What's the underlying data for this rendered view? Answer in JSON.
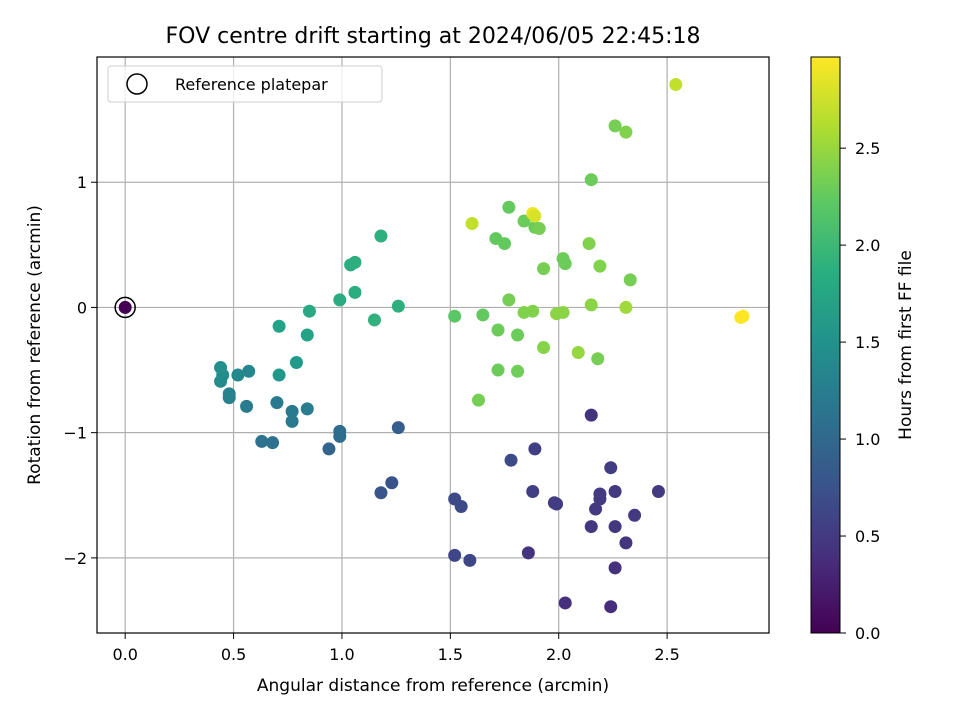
{
  "chart_data": {
    "type": "scatter",
    "title": "FOV centre drift starting at 2024/06/05 22:45:18",
    "xlabel": "Angular distance from reference (arcmin)",
    "ylabel": "Rotation from reference (arcmin)",
    "xlim": [
      -0.13,
      2.97
    ],
    "ylim": [
      -2.6,
      2.0
    ],
    "xticks": [
      0.0,
      0.5,
      1.0,
      1.5,
      2.0,
      2.5
    ],
    "xtick_labels": [
      "0.0",
      "0.5",
      "1.0",
      "1.5",
      "2.0",
      "2.5"
    ],
    "yticks": [
      -2,
      -1,
      0,
      1
    ],
    "ytick_labels": [
      "−2",
      "−1",
      "0",
      "1"
    ],
    "grid": true,
    "colorbar": {
      "label": "Hours from first FF file",
      "colormap": "viridis",
      "range": [
        0.0,
        2.97
      ],
      "ticks": [
        0.0,
        0.5,
        1.0,
        1.5,
        2.0,
        2.5
      ],
      "tick_labels": [
        "0.0",
        "0.5",
        "1.0",
        "1.5",
        "2.0",
        "2.5"
      ]
    },
    "legend": {
      "position": "upper-left",
      "entries": [
        "Reference platepar"
      ]
    },
    "reference_point": {
      "x": 0.0,
      "y": 0.0
    },
    "points": [
      {
        "x": 0.0,
        "y": 0.0,
        "c": 0.0
      },
      {
        "x": 2.24,
        "y": -2.39,
        "c": 0.38
      },
      {
        "x": 2.03,
        "y": -2.36,
        "c": 0.4
      },
      {
        "x": 2.26,
        "y": -2.08,
        "c": 0.42
      },
      {
        "x": 1.86,
        "y": -1.96,
        "c": 0.45
      },
      {
        "x": 1.59,
        "y": -2.02,
        "c": 0.62
      },
      {
        "x": 1.52,
        "y": -1.98,
        "c": 0.62
      },
      {
        "x": 2.31,
        "y": -1.88,
        "c": 0.46
      },
      {
        "x": 2.26,
        "y": -1.75,
        "c": 0.48
      },
      {
        "x": 2.15,
        "y": -1.75,
        "c": 0.48
      },
      {
        "x": 2.35,
        "y": -1.66,
        "c": 0.5
      },
      {
        "x": 2.17,
        "y": -1.61,
        "c": 0.5
      },
      {
        "x": 1.99,
        "y": -1.57,
        "c": 0.52
      },
      {
        "x": 1.98,
        "y": -1.56,
        "c": 0.52
      },
      {
        "x": 2.19,
        "y": -1.53,
        "c": 0.5
      },
      {
        "x": 2.19,
        "y": -1.49,
        "c": 0.5
      },
      {
        "x": 2.26,
        "y": -1.47,
        "c": 0.5
      },
      {
        "x": 2.46,
        "y": -1.47,
        "c": 0.5
      },
      {
        "x": 1.88,
        "y": -1.47,
        "c": 0.55
      },
      {
        "x": 1.55,
        "y": -1.59,
        "c": 0.65
      },
      {
        "x": 1.52,
        "y": -1.53,
        "c": 0.65
      },
      {
        "x": 2.24,
        "y": -1.28,
        "c": 0.52
      },
      {
        "x": 1.89,
        "y": -1.13,
        "c": 0.55
      },
      {
        "x": 1.78,
        "y": -1.22,
        "c": 0.65
      },
      {
        "x": 2.15,
        "y": -0.86,
        "c": 0.45
      },
      {
        "x": 1.23,
        "y": -1.4,
        "c": 0.75
      },
      {
        "x": 1.18,
        "y": -1.48,
        "c": 0.78
      },
      {
        "x": 1.26,
        "y": -0.96,
        "c": 0.88
      },
      {
        "x": 0.94,
        "y": -1.13,
        "c": 0.95
      },
      {
        "x": 0.99,
        "y": -1.03,
        "c": 1.05
      },
      {
        "x": 0.99,
        "y": -0.99,
        "c": 1.05
      },
      {
        "x": 0.68,
        "y": -1.08,
        "c": 1.1
      },
      {
        "x": 0.63,
        "y": -1.07,
        "c": 1.12
      },
      {
        "x": 0.77,
        "y": -0.91,
        "c": 1.2
      },
      {
        "x": 0.77,
        "y": -0.83,
        "c": 1.22
      },
      {
        "x": 0.84,
        "y": -0.81,
        "c": 1.24
      },
      {
        "x": 0.7,
        "y": -0.76,
        "c": 1.22
      },
      {
        "x": 0.56,
        "y": -0.79,
        "c": 1.25
      },
      {
        "x": 0.48,
        "y": -0.72,
        "c": 1.3
      },
      {
        "x": 0.48,
        "y": -0.69,
        "c": 1.33
      },
      {
        "x": 0.44,
        "y": -0.59,
        "c": 1.42
      },
      {
        "x": 0.52,
        "y": -0.54,
        "c": 1.4
      },
      {
        "x": 0.57,
        "y": -0.51,
        "c": 1.38
      },
      {
        "x": 0.45,
        "y": -0.54,
        "c": 1.45
      },
      {
        "x": 0.44,
        "y": -0.48,
        "c": 1.48
      },
      {
        "x": 0.71,
        "y": -0.54,
        "c": 1.58
      },
      {
        "x": 0.79,
        "y": -0.44,
        "c": 1.62
      },
      {
        "x": 0.71,
        "y": -0.15,
        "c": 1.7
      },
      {
        "x": 0.84,
        "y": -0.22,
        "c": 1.72
      },
      {
        "x": 0.85,
        "y": -0.03,
        "c": 1.78
      },
      {
        "x": 0.99,
        "y": 0.06,
        "c": 1.82
      },
      {
        "x": 1.06,
        "y": 0.12,
        "c": 1.85
      },
      {
        "x": 1.26,
        "y": 0.01,
        "c": 1.88
      },
      {
        "x": 1.15,
        "y": -0.1,
        "c": 1.9
      },
      {
        "x": 1.04,
        "y": 0.34,
        "c": 1.85
      },
      {
        "x": 1.06,
        "y": 0.36,
        "c": 1.86
      },
      {
        "x": 1.18,
        "y": 0.57,
        "c": 1.88
      },
      {
        "x": 1.52,
        "y": -0.07,
        "c": 2.2
      },
      {
        "x": 1.65,
        "y": -0.06,
        "c": 2.25
      },
      {
        "x": 1.72,
        "y": -0.18,
        "c": 2.3
      },
      {
        "x": 1.81,
        "y": -0.22,
        "c": 2.3
      },
      {
        "x": 1.72,
        "y": -0.5,
        "c": 2.3
      },
      {
        "x": 1.81,
        "y": -0.51,
        "c": 2.32
      },
      {
        "x": 1.63,
        "y": -0.74,
        "c": 2.35
      },
      {
        "x": 1.77,
        "y": 0.06,
        "c": 2.35
      },
      {
        "x": 1.84,
        "y": -0.04,
        "c": 2.4
      },
      {
        "x": 1.88,
        "y": -0.03,
        "c": 2.4
      },
      {
        "x": 1.93,
        "y": -0.32,
        "c": 2.42
      },
      {
        "x": 1.99,
        "y": -0.05,
        "c": 2.45
      },
      {
        "x": 2.02,
        "y": -0.04,
        "c": 2.45
      },
      {
        "x": 2.09,
        "y": -0.36,
        "c": 2.5
      },
      {
        "x": 2.18,
        "y": -0.41,
        "c": 2.35
      },
      {
        "x": 2.15,
        "y": 0.02,
        "c": 2.45
      },
      {
        "x": 2.31,
        "y": 0.0,
        "c": 2.55
      },
      {
        "x": 2.33,
        "y": 0.22,
        "c": 2.35
      },
      {
        "x": 2.19,
        "y": 0.33,
        "c": 2.4
      },
      {
        "x": 2.02,
        "y": 0.39,
        "c": 2.3
      },
      {
        "x": 2.03,
        "y": 0.35,
        "c": 2.3
      },
      {
        "x": 1.93,
        "y": 0.31,
        "c": 2.35
      },
      {
        "x": 2.14,
        "y": 0.51,
        "c": 2.4
      },
      {
        "x": 1.71,
        "y": 0.55,
        "c": 2.25
      },
      {
        "x": 1.75,
        "y": 0.51,
        "c": 2.25
      },
      {
        "x": 1.84,
        "y": 0.69,
        "c": 2.3
      },
      {
        "x": 1.89,
        "y": 0.64,
        "c": 2.3
      },
      {
        "x": 1.91,
        "y": 0.63,
        "c": 2.35
      },
      {
        "x": 1.77,
        "y": 0.8,
        "c": 2.25
      },
      {
        "x": 1.88,
        "y": 0.75,
        "c": 2.9
      },
      {
        "x": 1.89,
        "y": 0.73,
        "c": 2.8
      },
      {
        "x": 1.6,
        "y": 0.67,
        "c": 2.7
      },
      {
        "x": 2.15,
        "y": 1.02,
        "c": 2.3
      },
      {
        "x": 2.26,
        "y": 1.45,
        "c": 2.35
      },
      {
        "x": 2.31,
        "y": 1.4,
        "c": 2.4
      },
      {
        "x": 2.54,
        "y": 1.78,
        "c": 2.7
      },
      {
        "x": 2.84,
        "y": -0.08,
        "c": 2.95
      },
      {
        "x": 2.85,
        "y": -0.07,
        "c": 2.97
      }
    ]
  }
}
